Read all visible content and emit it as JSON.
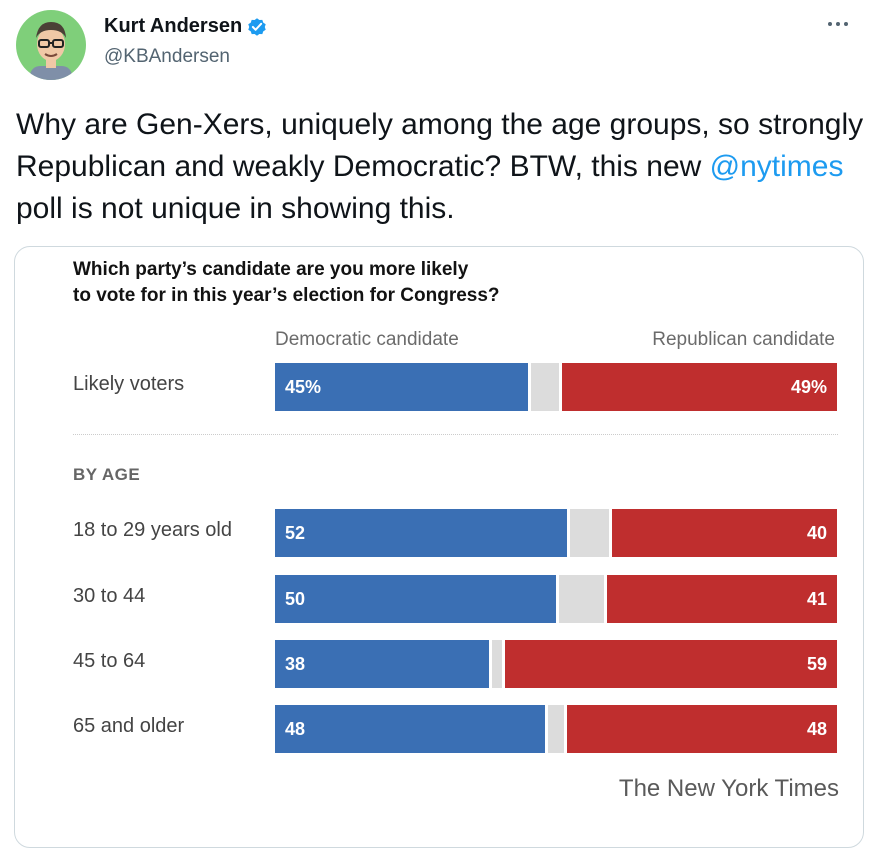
{
  "tweet": {
    "author_name": "Kurt Andersen",
    "author_handle": "@KBAndersen",
    "text_before_mention": "Why are Gen-Xers, uniquely among the age groups, so strongly Republican and weakly Democratic? BTW, this new ",
    "mention": "@nytimes",
    "text_after_mention": " poll is not unique in showing this."
  },
  "icons": {
    "verified": "verified-badge-icon",
    "more": "more-options-icon",
    "avatar": "avatar-illustration"
  },
  "colors": {
    "democratic": "#3a6fb4",
    "republican": "#bf2e2e",
    "undecided": "#dcdcdc",
    "link": "#1d9bf0",
    "verified": "#1d9bf0"
  },
  "chart_data": {
    "type": "bar",
    "stacked": true,
    "orientation": "horizontal",
    "title": "Which party’s candidate are you more likely to vote for in this year’s election for Congress?",
    "title_line1": "Which party’s candidate are you more likely",
    "title_line2": "to vote for in this year’s election for Congress?",
    "column_headers": [
      "Democratic candidate",
      "Republican candidate"
    ],
    "section_label": "BY AGE",
    "source": "The New York Times",
    "categories": [
      "Likely voters",
      "18 to 29 years old",
      "30 to 44",
      "45 to 64",
      "65 and older"
    ],
    "series": [
      {
        "name": "Democratic candidate",
        "values": [
          45,
          52,
          50,
          38,
          48
        ],
        "labels": [
          "45%",
          "52",
          "50",
          "38",
          "48"
        ]
      },
      {
        "name": "Republican candidate",
        "values": [
          49,
          40,
          41,
          59,
          48
        ],
        "labels": [
          "49%",
          "40",
          "41",
          "59",
          "48"
        ]
      }
    ],
    "xlim": [
      0,
      100
    ],
    "legend": "top"
  }
}
